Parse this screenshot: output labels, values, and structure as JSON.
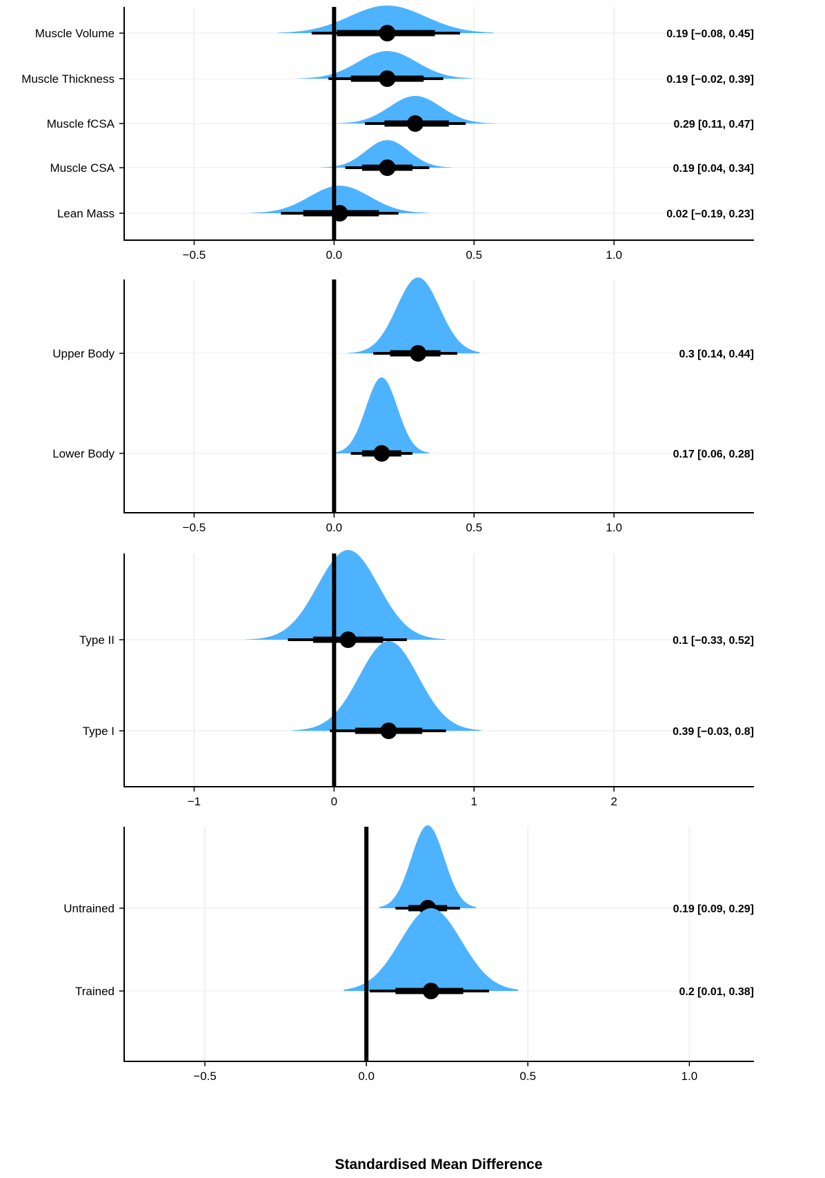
{
  "colors": {
    "density_fill": "#4db3ff",
    "ink": "#000000",
    "grid": "#ebebeb",
    "background": "#ffffff"
  },
  "xlabel": "Standardised Mean Difference",
  "chart_data": [
    {
      "type": "halfeye",
      "xlim": [
        -0.75,
        1.5
      ],
      "xticks": [
        -0.5,
        0.0,
        0.5,
        1.0
      ],
      "xtick_labels": [
        "−0.5",
        "0.0",
        "0.5",
        "1.0"
      ],
      "reference_line": 0,
      "grid": true,
      "rows": [
        {
          "label": "Muscle Volume",
          "estimate": 0.19,
          "ci_low": -0.08,
          "ci_high": 0.45,
          "ci66": [
            0.01,
            0.36
          ],
          "density_range": [
            -0.2,
            0.57
          ],
          "annotation": "0.19 [−0.08, 0.45]"
        },
        {
          "label": "Muscle Thickness",
          "estimate": 0.19,
          "ci_low": -0.02,
          "ci_high": 0.39,
          "ci66": [
            0.06,
            0.32
          ],
          "density_range": [
            -0.13,
            0.49
          ],
          "annotation": "0.19 [−0.02, 0.39]"
        },
        {
          "label": "Muscle fCSA",
          "estimate": 0.29,
          "ci_low": 0.11,
          "ci_high": 0.47,
          "ci66": [
            0.18,
            0.41
          ],
          "density_range": [
            0.01,
            0.58
          ],
          "annotation": "0.29 [0.11, 0.47]"
        },
        {
          "label": "Muscle CSA",
          "estimate": 0.19,
          "ci_low": 0.04,
          "ci_high": 0.34,
          "ci66": [
            0.1,
            0.28
          ],
          "density_range": [
            -0.05,
            0.42
          ],
          "annotation": "0.19 [0.04, 0.34]"
        },
        {
          "label": "Lean Mass",
          "estimate": 0.02,
          "ci_low": -0.19,
          "ci_high": 0.23,
          "ci66": [
            -0.11,
            0.16
          ],
          "density_range": [
            -0.3,
            0.34
          ],
          "annotation": "0.02 [−0.19, 0.23]"
        }
      ]
    },
    {
      "type": "halfeye",
      "xlim": [
        -0.75,
        1.5
      ],
      "xticks": [
        -0.5,
        0.0,
        0.5,
        1.0
      ],
      "xtick_labels": [
        "−0.5",
        "0.0",
        "0.5",
        "1.0"
      ],
      "reference_line": 0,
      "grid": true,
      "rows": [
        {
          "label": "Upper Body",
          "estimate": 0.3,
          "ci_low": 0.14,
          "ci_high": 0.44,
          "ci66": [
            0.2,
            0.38
          ],
          "density_range": [
            0.05,
            0.52
          ],
          "annotation": "0.3 [0.14, 0.44]"
        },
        {
          "label": "Lower Body",
          "estimate": 0.17,
          "ci_low": 0.06,
          "ci_high": 0.28,
          "ci66": [
            0.1,
            0.24
          ],
          "density_range": [
            0.0,
            0.34
          ],
          "annotation": "0.17 [0.06, 0.28]"
        }
      ]
    },
    {
      "type": "halfeye",
      "xlim": [
        -1.5,
        3.0
      ],
      "xticks": [
        -1,
        0,
        1,
        2
      ],
      "xtick_labels": [
        "−1",
        "0",
        "1",
        "2"
      ],
      "reference_line": 0,
      "grid": true,
      "rows": [
        {
          "label": "Type II",
          "estimate": 0.1,
          "ci_low": -0.33,
          "ci_high": 0.52,
          "ci66": [
            -0.15,
            0.35
          ],
          "density_range": [
            -0.63,
            0.8
          ],
          "annotation": "0.1 [−0.33, 0.52]"
        },
        {
          "label": "Type I",
          "estimate": 0.39,
          "ci_low": -0.03,
          "ci_high": 0.8,
          "ci66": [
            0.15,
            0.63
          ],
          "density_range": [
            -0.3,
            1.05
          ],
          "annotation": "0.39 [−0.03, 0.8]"
        }
      ]
    },
    {
      "type": "halfeye",
      "xlim": [
        -0.75,
        1.2
      ],
      "xticks": [
        -0.5,
        0.0,
        0.5,
        1.0
      ],
      "xtick_labels": [
        "−0.5",
        "0.0",
        "0.5",
        "1.0"
      ],
      "reference_line": 0,
      "grid": true,
      "rows": [
        {
          "label": "Untrained",
          "estimate": 0.19,
          "ci_low": 0.09,
          "ci_high": 0.29,
          "ci66": [
            0.13,
            0.25
          ],
          "density_range": [
            0.04,
            0.34
          ],
          "annotation": "0.19 [0.09, 0.29]"
        },
        {
          "label": "Trained",
          "estimate": 0.2,
          "ci_low": 0.01,
          "ci_high": 0.38,
          "ci66": [
            0.09,
            0.3
          ],
          "density_range": [
            -0.07,
            0.47
          ],
          "annotation": "0.2 [0.01, 0.38]"
        }
      ]
    }
  ]
}
